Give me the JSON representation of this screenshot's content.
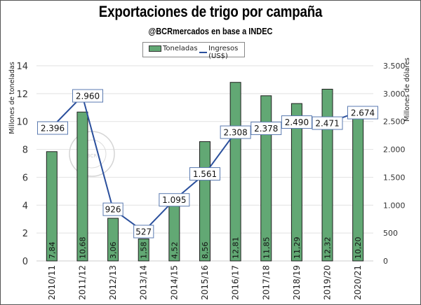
{
  "chart_data": {
    "type": "bar+line",
    "title": "Exportaciones de trigo por campaña",
    "subtitle": "@BCRmercados en base a INDEC",
    "categories": [
      "2010/11",
      "2011/12",
      "2012/13",
      "2013/14",
      "2014/15",
      "2015/16",
      "2016/17",
      "2017/18",
      "2018/19",
      "2019/20",
      "2020/21"
    ],
    "series": [
      {
        "name": "Toneladas",
        "type": "bar",
        "axis": "left",
        "color": "#62a874",
        "values": [
          7.84,
          10.68,
          3.06,
          1.58,
          4.52,
          8.56,
          12.81,
          11.85,
          11.29,
          12.32,
          10.2
        ],
        "labels": [
          "7,84",
          "10,68",
          "3,06",
          "1,58",
          "4,52",
          "8,56",
          "12,81",
          "11,85",
          "11,29",
          "12,32",
          "10,20"
        ]
      },
      {
        "name": "Ingresos (US$)",
        "type": "line",
        "axis": "right",
        "color": "#2a4f9c",
        "values": [
          2396,
          2960,
          926,
          527,
          1095,
          1561,
          2308,
          2378,
          2490,
          2471,
          2674
        ],
        "labels": [
          "2.396",
          "2.960",
          "926",
          "527",
          "1.095",
          "1.561",
          "2.308",
          "2.378",
          "2.490",
          "2.471",
          "2.674"
        ]
      }
    ],
    "ylabel": "Millones de toneladas",
    "y2label": "Millones de dólares",
    "ylim": [
      0,
      14
    ],
    "y2lim": [
      0,
      3500
    ],
    "yticks": [
      "0",
      "2",
      "4",
      "6",
      "8",
      "10",
      "12",
      "14"
    ],
    "y2ticks": [
      "0",
      "500",
      "1.000",
      "1.500",
      "2.000",
      "2.500",
      "3.000",
      "3.500"
    ],
    "grid": true,
    "legend_position": "top-center",
    "watermark": "BOLSA DE COMERCIO DE ROSARIO"
  }
}
